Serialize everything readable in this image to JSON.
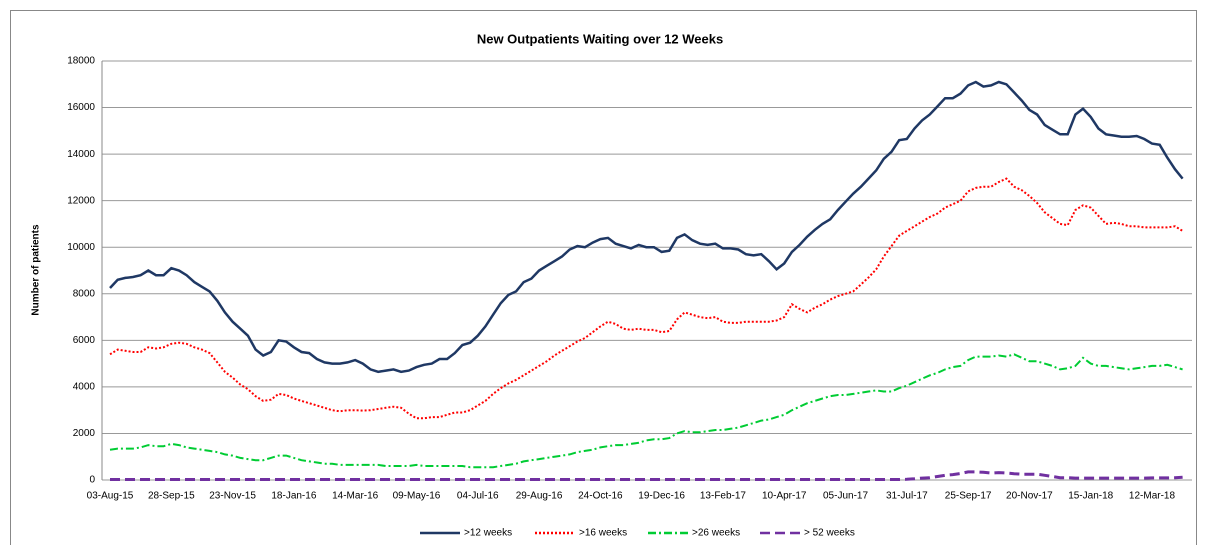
{
  "chart_data": {
    "type": "line",
    "title": "New Outpatients Waiting over 12 Weeks",
    "y_label": "Number of patients",
    "categories": [
      "03-Aug-15",
      null,
      null,
      null,
      null,
      null,
      null,
      null,
      "28-Sep-15",
      null,
      null,
      null,
      null,
      null,
      null,
      null,
      "23-Nov-15",
      null,
      null,
      null,
      null,
      null,
      null,
      null,
      "18-Jan-16",
      null,
      null,
      null,
      null,
      null,
      null,
      null,
      "14-Mar-16",
      null,
      null,
      null,
      null,
      null,
      null,
      null,
      "09-May-16",
      null,
      null,
      null,
      null,
      null,
      null,
      null,
      "04-Jul-16",
      null,
      null,
      null,
      null,
      null,
      null,
      null,
      "29-Aug-16",
      null,
      null,
      null,
      null,
      null,
      null,
      null,
      "24-Oct-16",
      null,
      null,
      null,
      null,
      null,
      null,
      null,
      "19-Dec-16",
      null,
      null,
      null,
      null,
      null,
      null,
      null,
      "13-Feb-17",
      null,
      null,
      null,
      null,
      null,
      null,
      null,
      "10-Apr-17",
      null,
      null,
      null,
      null,
      null,
      null,
      null,
      "05-Jun-17",
      null,
      null,
      null,
      null,
      null,
      null,
      null,
      "31-Jul-17",
      null,
      null,
      null,
      null,
      null,
      null,
      null,
      "25-Sep-17",
      null,
      null,
      null,
      null,
      null,
      null,
      null,
      "20-Nov-17",
      null,
      null,
      null,
      null,
      null,
      null,
      null,
      "15-Jan-18",
      null,
      null,
      null,
      null,
      null,
      null,
      null,
      "12-Mar-18",
      null,
      null,
      null,
      null
    ],
    "series": [
      {
        "name": ">12 weeks",
        "color": "#1f3864",
        "style": "solid",
        "values": [
          8250,
          8600,
          8680,
          8720,
          8800,
          9000,
          8800,
          8800,
          9100,
          9000,
          8800,
          8500,
          8300,
          8100,
          7700,
          7200,
          6800,
          6500,
          6200,
          5600,
          5350,
          5500,
          6000,
          5950,
          5700,
          5500,
          5450,
          5200,
          5050,
          5000,
          5000,
          5050,
          5150,
          5000,
          4750,
          4650,
          4700,
          4750,
          4650,
          4700,
          4850,
          4950,
          5000,
          5200,
          5200,
          5450,
          5800,
          5900,
          6200,
          6600,
          7100,
          7600,
          7950,
          8100,
          8500,
          8650,
          9000,
          9200,
          9400,
          9600,
          9900,
          10050,
          10000,
          10200,
          10350,
          10400,
          10150,
          10050,
          9950,
          10100,
          10000,
          10000,
          9800,
          9850,
          10400,
          10550,
          10300,
          10150,
          10100,
          10150,
          9950,
          9950,
          9900,
          9700,
          9650,
          9700,
          9400,
          9050,
          9300,
          9800,
          10100,
          10450,
          10750,
          11000,
          11200,
          11600,
          11950,
          12300,
          12600,
          12950,
          13300,
          13800,
          14100,
          14600,
          14650,
          15100,
          15450,
          15700,
          16050,
          16400,
          16400,
          16600,
          16950,
          17100,
          16900,
          16950,
          17100,
          17000,
          16650,
          16300,
          15900,
          15700,
          15250,
          15050,
          14850,
          14850,
          15700,
          15950,
          15600,
          15100,
          14850,
          14800,
          14750,
          14750,
          14780,
          14650,
          14450,
          14400,
          13850,
          13350,
          12950
        ]
      },
      {
        "name": ">16 weeks",
        "color": "#ff0000",
        "style": "dotted",
        "values": [
          5400,
          5600,
          5550,
          5500,
          5500,
          5700,
          5650,
          5700,
          5850,
          5900,
          5850,
          5700,
          5600,
          5450,
          5050,
          4650,
          4400,
          4100,
          3900,
          3600,
          3400,
          3450,
          3700,
          3650,
          3500,
          3400,
          3300,
          3200,
          3100,
          3000,
          2950,
          3000,
          3000,
          2980,
          3000,
          3050,
          3100,
          3150,
          3100,
          2850,
          2650,
          2650,
          2700,
          2700,
          2800,
          2900,
          2900,
          3000,
          3200,
          3400,
          3700,
          3950,
          4150,
          4300,
          4500,
          4700,
          4900,
          5100,
          5350,
          5550,
          5750,
          5950,
          6100,
          6350,
          6600,
          6800,
          6700,
          6500,
          6450,
          6500,
          6450,
          6450,
          6350,
          6400,
          6900,
          7200,
          7100,
          7000,
          6950,
          7000,
          6800,
          6750,
          6750,
          6800,
          6800,
          6800,
          6800,
          6850,
          7000,
          7550,
          7350,
          7200,
          7400,
          7550,
          7750,
          7900,
          8000,
          8100,
          8400,
          8700,
          9050,
          9600,
          10050,
          10500,
          10700,
          10900,
          11100,
          11300,
          11450,
          11700,
          11850,
          12000,
          12400,
          12550,
          12600,
          12600,
          12800,
          12950,
          12600,
          12450,
          12200,
          11900,
          11500,
          11250,
          11000,
          10950,
          11600,
          11800,
          11700,
          11350,
          11000,
          11050,
          11000,
          10900,
          10900,
          10850,
          10850,
          10850,
          10850,
          10900,
          10700
        ]
      },
      {
        "name": ">26 weeks",
        "color": "#00cc33",
        "style": "dashdot",
        "values": [
          1300,
          1350,
          1350,
          1350,
          1400,
          1500,
          1450,
          1450,
          1550,
          1500,
          1400,
          1350,
          1300,
          1250,
          1200,
          1100,
          1050,
          950,
          900,
          850,
          850,
          950,
          1050,
          1050,
          950,
          850,
          800,
          750,
          700,
          700,
          650,
          650,
          650,
          650,
          650,
          650,
          600,
          600,
          600,
          600,
          650,
          600,
          600,
          600,
          600,
          600,
          600,
          550,
          550,
          550,
          550,
          600,
          650,
          700,
          800,
          850,
          900,
          950,
          1000,
          1050,
          1100,
          1200,
          1250,
          1300,
          1400,
          1450,
          1500,
          1500,
          1550,
          1600,
          1700,
          1750,
          1750,
          1800,
          2000,
          2100,
          2050,
          2050,
          2100,
          2150,
          2150,
          2200,
          2250,
          2350,
          2450,
          2550,
          2600,
          2700,
          2800,
          3000,
          3150,
          3300,
          3400,
          3500,
          3600,
          3650,
          3650,
          3700,
          3750,
          3800,
          3850,
          3800,
          3800,
          3950,
          4050,
          4200,
          4350,
          4500,
          4600,
          4750,
          4850,
          4900,
          5150,
          5300,
          5300,
          5300,
          5350,
          5300,
          5400,
          5250,
          5100,
          5100,
          5000,
          4900,
          4750,
          4800,
          4900,
          5250,
          5000,
          4900,
          4900,
          4850,
          4800,
          4750,
          4800,
          4850,
          4900,
          4900,
          4950,
          4850,
          4750
        ]
      },
      {
        "name": "> 52 weeks",
        "color": "#7030a0",
        "style": "dashed",
        "values": [
          20,
          20,
          20,
          20,
          20,
          20,
          20,
          20,
          20,
          20,
          20,
          20,
          20,
          20,
          20,
          20,
          20,
          20,
          20,
          20,
          20,
          20,
          20,
          20,
          20,
          20,
          20,
          20,
          20,
          20,
          20,
          20,
          20,
          20,
          20,
          20,
          20,
          20,
          20,
          20,
          20,
          20,
          20,
          20,
          20,
          20,
          20,
          20,
          20,
          20,
          20,
          20,
          20,
          20,
          20,
          20,
          20,
          20,
          20,
          20,
          20,
          20,
          20,
          20,
          20,
          20,
          20,
          20,
          20,
          20,
          20,
          20,
          20,
          20,
          20,
          20,
          20,
          20,
          20,
          20,
          20,
          20,
          20,
          20,
          20,
          20,
          20,
          20,
          20,
          20,
          20,
          20,
          20,
          20,
          20,
          20,
          20,
          20,
          20,
          20,
          20,
          20,
          20,
          20,
          30,
          50,
          80,
          100,
          150,
          200,
          230,
          280,
          350,
          350,
          330,
          300,
          320,
          300,
          270,
          250,
          250,
          250,
          200,
          150,
          100,
          100,
          80,
          80,
          80,
          80,
          80,
          80,
          80,
          80,
          80,
          80,
          90,
          90,
          90,
          100,
          120
        ]
      }
    ],
    "ylim": [
      0,
      18000
    ],
    "yticks": [
      0,
      2000,
      4000,
      6000,
      8000,
      10000,
      12000,
      14000,
      16000,
      18000
    ],
    "grid": true,
    "legend": "bottom"
  }
}
